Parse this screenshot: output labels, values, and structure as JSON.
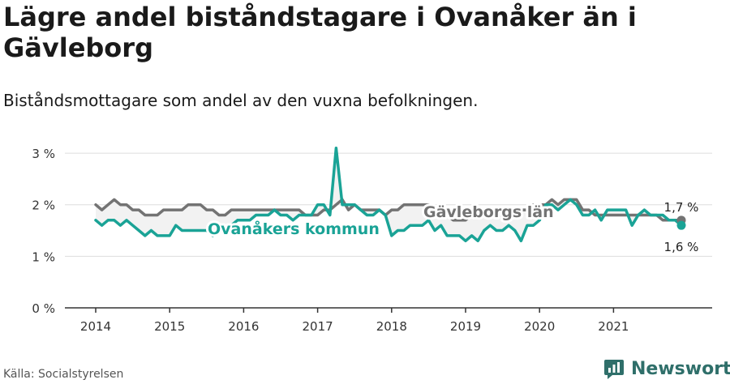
{
  "header": {
    "title": "Lägre andel biståndstagare i Ovanåker än i Gävleborg",
    "subtitle": "Biståndsmottagare som andel av den vuxna befolkningen."
  },
  "footer": {
    "source": "Källa: Socialstyrelsen",
    "brand": "Newsworthy"
  },
  "colors": {
    "ovanaker": "#1aa396",
    "gavleborg": "#737373",
    "grid": "#dddddd",
    "axis": "#333333",
    "fill": "#f2f2f2"
  },
  "chart_data": {
    "type": "line",
    "x_start": "2014-01",
    "x_ticks": [
      "2014",
      "2015",
      "2016",
      "2017",
      "2018",
      "2019",
      "2020",
      "2021"
    ],
    "y_ticks": [
      "0 %",
      "1 %",
      "2 %",
      "3 %"
    ],
    "ylim": [
      0,
      3.3
    ],
    "grid": true,
    "series": [
      {
        "name": "Gävleborgs län",
        "color": "#737373",
        "end_label": "1,7 %",
        "values": [
          2.0,
          1.9,
          2.0,
          2.1,
          2.0,
          2.0,
          1.9,
          1.9,
          1.8,
          1.8,
          1.8,
          1.9,
          1.9,
          1.9,
          1.9,
          2.0,
          2.0,
          2.0,
          1.9,
          1.9,
          1.8,
          1.8,
          1.9,
          1.9,
          1.9,
          1.9,
          1.9,
          1.9,
          1.9,
          1.9,
          1.9,
          1.9,
          1.9,
          1.9,
          1.8,
          1.8,
          1.8,
          1.9,
          1.9,
          2.0,
          2.1,
          1.9,
          2.0,
          1.9,
          1.9,
          1.9,
          1.9,
          1.8,
          1.9,
          1.9,
          2.0,
          2.0,
          2.0,
          2.0,
          2.0,
          1.9,
          1.8,
          1.8,
          1.7,
          1.7,
          1.7,
          1.8,
          1.8,
          1.8,
          1.8,
          1.8,
          1.8,
          1.8,
          1.8,
          1.9,
          1.9,
          2.0,
          2.0,
          2.0,
          2.1,
          2.0,
          2.1,
          2.1,
          2.1,
          1.9,
          1.9,
          1.8,
          1.8,
          1.8,
          1.8,
          1.8,
          1.8,
          1.8,
          1.8,
          1.8,
          1.8,
          1.8,
          1.7,
          1.7,
          1.7,
          1.7
        ]
      },
      {
        "name": "Ovanåkers kommun",
        "color": "#1aa396",
        "end_label": "1,6 %",
        "values": [
          1.7,
          1.6,
          1.7,
          1.7,
          1.6,
          1.7,
          1.6,
          1.5,
          1.4,
          1.5,
          1.4,
          1.4,
          1.4,
          1.6,
          1.5,
          1.5,
          1.5,
          1.5,
          1.5,
          1.4,
          1.5,
          1.5,
          1.6,
          1.7,
          1.7,
          1.7,
          1.8,
          1.8,
          1.8,
          1.9,
          1.8,
          1.8,
          1.7,
          1.8,
          1.8,
          1.8,
          2.0,
          2.0,
          1.8,
          3.1,
          2.0,
          2.0,
          2.0,
          1.9,
          1.8,
          1.8,
          1.9,
          1.8,
          1.4,
          1.5,
          1.5,
          1.6,
          1.6,
          1.6,
          1.7,
          1.5,
          1.6,
          1.4,
          1.4,
          1.4,
          1.3,
          1.4,
          1.3,
          1.5,
          1.6,
          1.5,
          1.5,
          1.6,
          1.5,
          1.3,
          1.6,
          1.6,
          1.7,
          2.0,
          2.0,
          1.9,
          2.0,
          2.1,
          2.0,
          1.8,
          1.8,
          1.9,
          1.7,
          1.9,
          1.9,
          1.9,
          1.9,
          1.6,
          1.8,
          1.9,
          1.8,
          1.8,
          1.8,
          1.7,
          1.7,
          1.6
        ]
      }
    ]
  }
}
